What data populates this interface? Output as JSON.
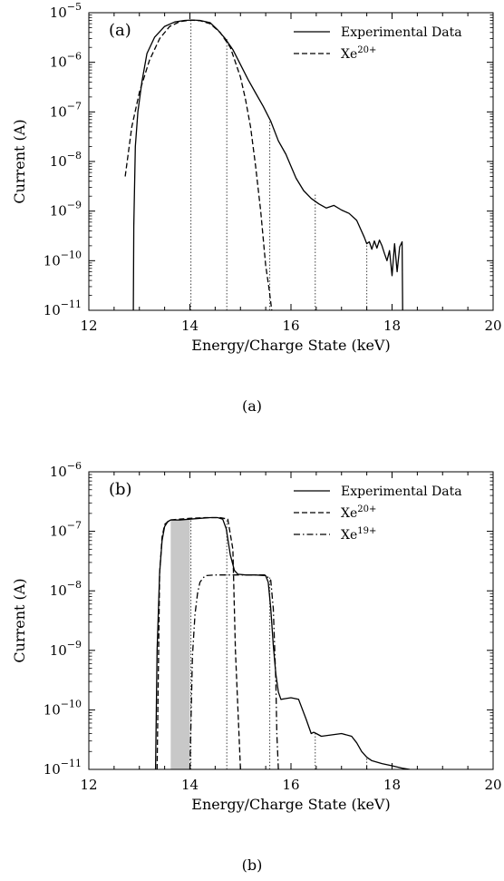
{
  "chart_data": [
    {
      "type": "line",
      "panel_label": "(a)",
      "caption": "(a)",
      "xlabel": "Energy/Charge State (keV)",
      "ylabel": "Current (A)",
      "xlim": [
        12,
        20
      ],
      "ylim_log10": [
        -11,
        -5
      ],
      "y_scale": "log",
      "x_ticks": [
        "12",
        "14",
        "16",
        "18",
        "20"
      ],
      "y_ticks": [
        {
          "base": "10",
          "exp": "−11"
        },
        {
          "base": "10",
          "exp": "−10"
        },
        {
          "base": "10",
          "exp": "−9"
        },
        {
          "base": "10",
          "exp": "−8"
        },
        {
          "base": "10",
          "exp": "−7"
        },
        {
          "base": "10",
          "exp": "−6"
        },
        {
          "base": "10",
          "exp": "−5"
        }
      ],
      "legend_position": "top-right",
      "series": [
        {
          "name": "Experimental Data",
          "style": "solid",
          "x": [
            12.88,
            12.89,
            12.92,
            12.97,
            13.05,
            13.15,
            13.3,
            13.5,
            13.7,
            13.9,
            14.05,
            14.2,
            14.4,
            14.55,
            14.7,
            14.85,
            15.0,
            15.15,
            15.3,
            15.45,
            15.6,
            15.75,
            15.9,
            16.0,
            16.1,
            16.25,
            16.4,
            16.55,
            16.7,
            16.85,
            17.0,
            17.15,
            17.3,
            17.45,
            17.5,
            17.55,
            17.6,
            17.65,
            17.7,
            17.75,
            17.8,
            17.85,
            17.9,
            17.95,
            18.0,
            18.05,
            18.1,
            18.15,
            18.2,
            18.21
          ],
          "y": [
            1e-11,
            5e-10,
            2e-08,
            1e-07,
            4e-07,
            1.5e-06,
            3.2e-06,
            5.3e-06,
            6.5e-06,
            7e-06,
            7.1e-06,
            7e-06,
            6.3e-06,
            4.5e-06,
            3e-06,
            1.8e-06,
            9e-07,
            4.5e-07,
            2.4e-07,
            1.3e-07,
            6.5e-08,
            2.6e-08,
            1.4e-08,
            8e-09,
            4.6e-09,
            2.6e-09,
            1.8e-09,
            1.4e-09,
            1.15e-09,
            1.3e-09,
            1.05e-09,
            9e-10,
            6.5e-10,
            3e-10,
            2.2e-10,
            2.4e-10,
            1.7e-10,
            2.5e-10,
            1.8e-10,
            2.6e-10,
            2e-10,
            1.4e-10,
            1e-10,
            1.6e-10,
            5e-11,
            2.2e-10,
            6e-11,
            1.9e-10,
            2.4e-10,
            1e-11
          ]
        },
        {
          "name": "Xe20+",
          "name_base": "Xe",
          "name_sup": "20+",
          "style": "dashed",
          "x": [
            12.72,
            12.85,
            13.0,
            13.2,
            13.4,
            13.6,
            13.8,
            14.0,
            14.2,
            14.4,
            14.6,
            14.8,
            15.0,
            15.1,
            15.2,
            15.3,
            15.4,
            15.5,
            15.56,
            15.62
          ],
          "y": [
            5e-09,
            5e-08,
            2.5e-07,
            1.1e-06,
            3e-06,
            5.3e-06,
            6.6e-06,
            7.1e-06,
            6.9e-06,
            6e-06,
            4e-06,
            2e-06,
            5e-07,
            1.8e-07,
            5e-08,
            8e-09,
            1e-09,
            8e-11,
            3e-11,
            1e-11
          ]
        }
      ],
      "vlines": [
        {
          "x": 14.02,
          "y_top": 7.1e-06
        },
        {
          "x": 14.73,
          "y_top": 3e-06
        },
        {
          "x": 15.58,
          "y_top": 7e-08
        },
        {
          "x": 16.48,
          "y_top": 2.2e-09
        },
        {
          "x": 17.5,
          "y_top": 2.5e-10
        }
      ]
    },
    {
      "type": "line",
      "panel_label": "(b)",
      "caption": "(b)",
      "xlabel": "Energy/Charge State (keV)",
      "ylabel": "Current (A)",
      "xlim": [
        12,
        20
      ],
      "ylim_log10": [
        -11,
        -6
      ],
      "y_scale": "log",
      "x_ticks": [
        "12",
        "14",
        "16",
        "18",
        "20"
      ],
      "y_ticks": [
        {
          "base": "10",
          "exp": "−11"
        },
        {
          "base": "10",
          "exp": "−10"
        },
        {
          "base": "10",
          "exp": "−9"
        },
        {
          "base": "10",
          "exp": "−8"
        },
        {
          "base": "10",
          "exp": "−7"
        },
        {
          "base": "10",
          "exp": "−6"
        }
      ],
      "legend_position": "top-right",
      "shaded_region": {
        "x": [
          13.62,
          14.0
        ],
        "y_top": 1.6e-07,
        "color": "#c8c8c8"
      },
      "series": [
        {
          "name": "Experimental Data",
          "style": "solid",
          "x": [
            13.32,
            13.35,
            13.4,
            13.45,
            13.5,
            13.56,
            13.62,
            13.8,
            14.0,
            14.2,
            14.4,
            14.55,
            14.65,
            14.72,
            14.8,
            14.88,
            14.95,
            15.1,
            15.3,
            15.5,
            15.55,
            15.6,
            15.65,
            15.7,
            15.75,
            15.8,
            15.9,
            16.0,
            16.15,
            16.3,
            16.4,
            16.45,
            16.5,
            16.6,
            16.8,
            17.0,
            17.2,
            17.3,
            17.4,
            17.5,
            17.6,
            17.8,
            18.0,
            18.2,
            18.35
          ],
          "y": [
            1e-11,
            1e-09,
            2e-08,
            7e-08,
            1.2e-07,
            1.45e-07,
            1.55e-07,
            1.55e-07,
            1.6e-07,
            1.65e-07,
            1.7e-07,
            1.7e-07,
            1.6e-07,
            1.1e-07,
            4e-08,
            2.2e-08,
            1.9e-08,
            1.85e-08,
            1.85e-08,
            1.8e-08,
            1.4e-08,
            5e-09,
            1.2e-09,
            4e-10,
            2e-10,
            1.5e-10,
            1.55e-10,
            1.6e-10,
            1.5e-10,
            7e-11,
            4e-11,
            4.2e-11,
            4e-11,
            3.6e-11,
            3.8e-11,
            4e-11,
            3.6e-11,
            2.8e-11,
            2e-11,
            1.6e-11,
            1.4e-11,
            1.25e-11,
            1.15e-11,
            1.05e-11,
            1e-11
          ]
        },
        {
          "name": "Xe20+",
          "name_base": "Xe",
          "name_sup": "20+",
          "style": "dashed",
          "x": [
            13.35,
            13.4,
            13.45,
            13.5,
            13.6,
            13.8,
            14.0,
            14.3,
            14.6,
            14.75,
            14.85,
            14.9,
            14.95,
            15.0
          ],
          "y": [
            1e-11,
            2e-08,
            8e-08,
            1.3e-07,
            1.55e-07,
            1.6e-07,
            1.65e-07,
            1.7e-07,
            1.7e-07,
            1.6e-07,
            5e-08,
            1e-09,
            1e-10,
            1e-11
          ]
        },
        {
          "name": "Xe19+",
          "name_base": "Xe",
          "name_sup": "19+",
          "style": "dashdot",
          "x": [
            14.0,
            14.05,
            14.1,
            14.15,
            14.2,
            14.3,
            14.5,
            15.0,
            15.5,
            15.6,
            15.65,
            15.7,
            15.72,
            15.75
          ],
          "y": [
            1e-11,
            8e-10,
            4e-09,
            9e-09,
            1.4e-08,
            1.8e-08,
            1.85e-08,
            1.85e-08,
            1.85e-08,
            1.5e-08,
            5e-09,
            3e-10,
            4e-11,
            1e-11
          ]
        }
      ],
      "vlines": [
        {
          "x": 14.02,
          "y_top": 1.6e-07
        },
        {
          "x": 14.73,
          "y_top": 1.6e-07
        },
        {
          "x": 15.58,
          "y_top": 1.8e-08
        },
        {
          "x": 16.48,
          "y_top": 4.2e-11
        },
        {
          "x": 17.5,
          "y_top": 1.6e-11
        }
      ]
    }
  ]
}
